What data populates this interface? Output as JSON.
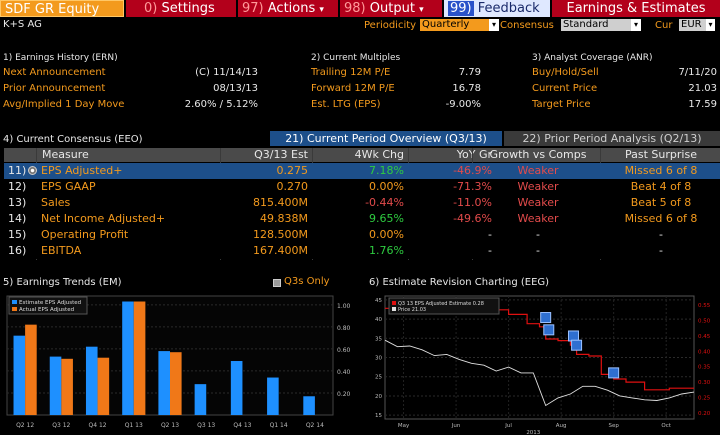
{
  "tabs": {
    "security": "SDF GR Equity",
    "settings": {
      "num": "0)",
      "label": "Settings"
    },
    "actions": {
      "num": "97)",
      "label": "Actions",
      "caret": "▾"
    },
    "output": {
      "num": "98)",
      "label": "Output",
      "caret": "▾"
    },
    "feedback": {
      "num": "99)",
      "label": "Feedback"
    },
    "earnings": "Earnings & Estimates"
  },
  "company": "K+S AG",
  "controls": {
    "periodicity_label": "Periodicity",
    "periodicity_value": "Quarterly",
    "consensus_label": "Consensus",
    "consensus_value": "Standard",
    "cur_label": "Cur",
    "cur_value": "EUR"
  },
  "earnings_history": {
    "title": "1) Earnings History (ERN)",
    "rows": [
      {
        "label": "Next Announcement",
        "value": "(C)  11/14/13"
      },
      {
        "label": "Prior Announcement",
        "value": "08/13/13"
      },
      {
        "label": "Avg/Implied 1 Day Move",
        "value": "2.60% / 5.12%"
      }
    ]
  },
  "current_multiples": {
    "title": "2) Current Multiples",
    "rows": [
      {
        "label": "Trailing 12M P/E",
        "value": "7.79"
      },
      {
        "label": "Forward 12M P/E",
        "value": "16.78"
      },
      {
        "label": "Est. LTG (EPS)",
        "value": "-9.00%"
      }
    ]
  },
  "analyst_coverage": {
    "title": "3) Analyst Coverage (ANR)",
    "rows": [
      {
        "label": "Buy/Hold/Sell",
        "value": "7/11/20"
      },
      {
        "label": "Current Price",
        "value": "21.03"
      },
      {
        "label": "Target Price",
        "value": "17.59"
      }
    ]
  },
  "consensus": {
    "title": "4) Current Consensus (EEO)",
    "tab_current": "21) Current Period Overview (Q3/13)",
    "tab_prior": "22) Prior Period Analysis (Q2/13)",
    "columns": [
      "Measure",
      "Q3/13 Est",
      "4Wk Chg",
      "YoY Gr",
      "Growth vs Comps",
      "Past Surprise"
    ],
    "rows": [
      {
        "num": "11)",
        "measure": "EPS Adjusted+",
        "est": "0.275",
        "chg": "7.18%",
        "yoy": "-46.9%",
        "growth": "Weaker",
        "surprise": "Missed 6 of 8",
        "chg_color": "#2ecc40",
        "yoy_color": "#e34b4b",
        "surprise_color": "#f39a1d"
      },
      {
        "num": "12)",
        "measure": "EPS GAAP",
        "est": "0.270",
        "chg": "0.00%",
        "yoy": "-71.3%",
        "growth": "Weaker",
        "surprise": "Beat 4 of 8",
        "chg_color": "#f39a1d",
        "yoy_color": "#e34b4b",
        "surprise_color": "#f39a1d"
      },
      {
        "num": "13)",
        "measure": "Sales",
        "est": "815.400M",
        "chg": "-0.44%",
        "yoy": "-11.0%",
        "growth": "Weaker",
        "surprise": "Beat 5 of 8",
        "chg_color": "#e34b4b",
        "yoy_color": "#e34b4b",
        "surprise_color": "#f39a1d"
      },
      {
        "num": "14)",
        "measure": "Net Income Adjusted+",
        "est": "49.838M",
        "chg": "9.65%",
        "yoy": "-49.6%",
        "growth": "Weaker",
        "surprise": "Missed 6 of 8",
        "chg_color": "#2ecc40",
        "yoy_color": "#e34b4b",
        "surprise_color": "#f39a1d"
      },
      {
        "num": "15)",
        "measure": "Operating Profit",
        "est": "128.500M",
        "chg": "0.00%",
        "yoy": "-",
        "growth": "-",
        "surprise": "-",
        "chg_color": "#f39a1d",
        "yoy_color": "#e8e8e8",
        "surprise_color": "#e8e8e8"
      },
      {
        "num": "16)",
        "measure": "EBITDA",
        "est": "167.400M",
        "chg": "1.76%",
        "yoy": "-",
        "growth": "-",
        "surprise": "-",
        "chg_color": "#2ecc40",
        "yoy_color": "#e8e8e8",
        "surprise_color": "#e8e8e8"
      }
    ]
  },
  "earnings_trends": {
    "title": "5) Earnings Trends (EM)",
    "q3s_only": "Q3s Only",
    "legend_estimate": "Estimate EPS Adjusted",
    "legend_actual": "Actual EPS Adjusted",
    "colors": {
      "estimate": "#1e90ff",
      "actual": "#f07818"
    }
  },
  "estimate_revision": {
    "title": "6) Estimate Revision Charting (EEG)",
    "legend_estimate": "Q3 13 EPS Adjusted Estimate  0.28",
    "legend_price": "Price                                          21.03",
    "colors": {
      "estimate": "#e01010",
      "price": "#e0e0e0"
    }
  },
  "chart_data": [
    {
      "type": "bar",
      "title": "5) Earnings Trends (EM)",
      "categories": [
        "Q2 12",
        "Q3 12",
        "Q4 12",
        "Q1 13",
        "Q2 13",
        "Q3 13",
        "Q4 13",
        "Q1 14",
        "Q2 14"
      ],
      "series": [
        {
          "name": "Estimate EPS Adjusted",
          "values": [
            0.72,
            0.53,
            0.62,
            1.03,
            0.58,
            0.28,
            0.49,
            0.34,
            0.17
          ]
        },
        {
          "name": "Actual EPS Adjusted",
          "values": [
            0.82,
            0.51,
            0.52,
            1.03,
            0.57,
            null,
            null,
            null,
            null
          ]
        }
      ],
      "y_axis_side": "right",
      "yticks": [
        0.2,
        0.4,
        0.6,
        0.8,
        1.0
      ],
      "ylim": [
        0.0,
        1.08
      ]
    },
    {
      "type": "line",
      "title": "6) Estimate Revision Charting (EEG)",
      "x_ticks": [
        "May",
        "Jun",
        "Jul",
        "Aug",
        "Sep",
        "Oct"
      ],
      "x_year_label": "2013",
      "left_yticks": [
        15,
        20,
        25,
        30,
        35,
        40,
        45
      ],
      "left_ylim": [
        14,
        46
      ],
      "right_yticks": [
        0.2,
        0.25,
        0.3,
        0.35,
        0.4,
        0.45,
        0.5,
        0.55
      ],
      "right_ylim": [
        0.18,
        0.58
      ],
      "series": [
        {
          "name": "Price",
          "axis": "left",
          "x": [
            0,
            4,
            8,
            12,
            16,
            20,
            24,
            28,
            32,
            36,
            40,
            44,
            48,
            52,
            56,
            60,
            64,
            68,
            72,
            76,
            80,
            84,
            88,
            92,
            96,
            100
          ],
          "values": [
            34.5,
            32.8,
            33.0,
            32.0,
            30.5,
            30.8,
            29.5,
            28.5,
            28.0,
            26.5,
            27.5,
            26.0,
            26.0,
            17.5,
            19.5,
            20.5,
            22.5,
            22.5,
            21.5,
            20.0,
            19.5,
            19.0,
            18.8,
            19.5,
            20.5,
            21.0
          ]
        },
        {
          "name": "Q3 13 EPS Adjusted Estimate",
          "axis": "right",
          "x": [
            0,
            10,
            20,
            30,
            40,
            46,
            50,
            52,
            56,
            60,
            62,
            66,
            70,
            74,
            78,
            80,
            84,
            88,
            92,
            96,
            100
          ],
          "values": [
            0.54,
            0.54,
            0.54,
            0.535,
            0.52,
            0.49,
            0.48,
            0.44,
            0.435,
            0.42,
            0.39,
            0.385,
            0.325,
            0.31,
            0.3,
            0.3,
            0.275,
            0.275,
            0.28,
            0.28,
            0.28
          ]
        }
      ]
    }
  ]
}
